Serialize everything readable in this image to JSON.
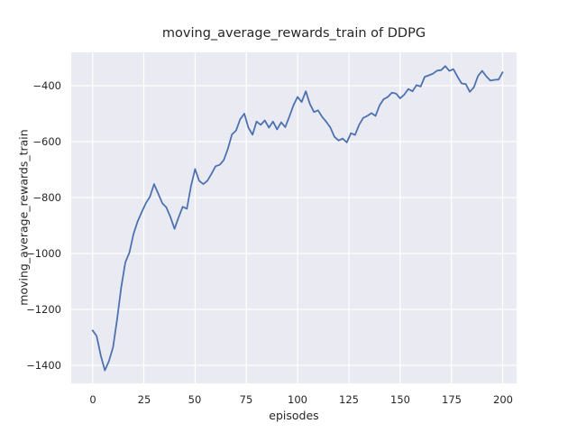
{
  "figure": {
    "title": "moving_average_rewards_train of DDPG",
    "xlabel": "episodes",
    "ylabel": "moving_average_rewards_train"
  },
  "chart_data": {
    "type": "line",
    "title": "moving_average_rewards_train of DDPG",
    "xlabel": "episodes",
    "ylabel": "moving_average_rewards_train",
    "legend": "none",
    "grid": true,
    "plot_bg_color": "#eaeaf2",
    "grid_color": "#ffffff",
    "line_color": "#4c72b0",
    "text_color": "#262626",
    "xticks": [
      0,
      25,
      50,
      75,
      100,
      125,
      150,
      175,
      200
    ],
    "yticks": [
      -400,
      -600,
      -800,
      -1000,
      -1200,
      -1400
    ],
    "xlim": [
      -10.4,
      206.8
    ],
    "ylim": [
      -1464.5,
      -280.6
    ],
    "x": [
      0,
      2,
      4,
      6,
      8,
      10,
      12,
      14,
      16,
      18,
      20,
      22,
      24,
      26,
      28,
      30,
      32,
      34,
      36,
      38,
      40,
      42,
      44,
      46,
      48,
      50,
      52,
      54,
      56,
      58,
      60,
      62,
      64,
      66,
      68,
      70,
      72,
      74,
      76,
      78,
      80,
      82,
      84,
      86,
      88,
      90,
      92,
      94,
      96,
      98,
      100,
      102,
      104,
      106,
      108,
      110,
      112,
      114,
      116,
      118,
      120,
      122,
      124,
      126,
      128,
      130,
      132,
      134,
      136,
      138,
      140,
      142,
      144,
      146,
      148,
      150,
      152,
      154,
      156,
      158,
      160,
      162,
      164,
      166,
      168,
      170,
      172,
      174,
      176,
      178,
      180,
      182,
      184,
      186,
      188,
      190,
      192,
      194,
      196,
      198,
      200
    ],
    "y": [
      -1275,
      -1295,
      -1365,
      -1418,
      -1385,
      -1335,
      -1235,
      -1120,
      -1032,
      -996,
      -930,
      -885,
      -852,
      -820,
      -797,
      -752,
      -785,
      -820,
      -835,
      -870,
      -912,
      -870,
      -833,
      -840,
      -760,
      -698,
      -740,
      -752,
      -740,
      -715,
      -688,
      -683,
      -666,
      -625,
      -574,
      -560,
      -520,
      -500,
      -550,
      -575,
      -528,
      -540,
      -524,
      -550,
      -528,
      -556,
      -531,
      -548,
      -510,
      -470,
      -440,
      -458,
      -420,
      -465,
      -494,
      -488,
      -512,
      -529,
      -550,
      -583,
      -596,
      -589,
      -603,
      -570,
      -576,
      -540,
      -515,
      -508,
      -498,
      -508,
      -470,
      -448,
      -440,
      -425,
      -428,
      -445,
      -432,
      -412,
      -420,
      -398,
      -403,
      -368,
      -363,
      -357,
      -346,
      -344,
      -330,
      -347,
      -341,
      -368,
      -392,
      -394,
      -422,
      -405,
      -365,
      -347,
      -366,
      -382,
      -379,
      -378,
      -352
    ]
  }
}
